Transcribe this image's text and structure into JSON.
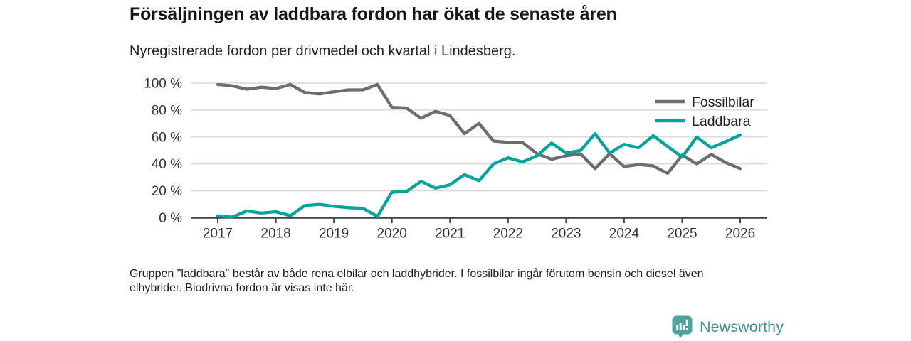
{
  "header": {
    "title": "Försäljningen av laddbara fordon har ökat de senaste åren",
    "subtitle": "Nyregistrerade fordon per drivmedel och kvartal i Lindesberg."
  },
  "chart_data": {
    "type": "line",
    "title": "Försäljningen av laddbara fordon har ökat de senaste åren",
    "subtitle": "Nyregistrerade fordon per drivmedel och kvartal i Lindesberg.",
    "x_unit": "quarter",
    "x_start": "2017 Q1",
    "x_end": "2026 Q1",
    "x_tick_labels": [
      "2017",
      "2018",
      "2019",
      "2020",
      "2021",
      "2022",
      "2023",
      "2024",
      "2025",
      "2026"
    ],
    "quarters_per_year": 4,
    "ylim": [
      0,
      100
    ],
    "y_ticks": [
      100,
      80,
      60,
      40,
      20,
      0
    ],
    "y_tick_labels": [
      "100 %",
      "80 %",
      "60 %",
      "40 %",
      "20 %",
      "0 %"
    ],
    "grid": "horizontal",
    "legend_position": "top-right",
    "series": [
      {
        "name": "Fossilbilar",
        "color": "#6c6c75",
        "values": [
          99,
          98,
          95.5,
          97,
          96,
          99,
          93,
          92,
          93.5,
          95,
          95,
          99,
          82,
          81.5,
          74,
          79,
          76,
          62.5,
          70,
          57,
          56,
          56,
          47.5,
          43.5,
          46,
          47.5,
          36.5,
          47.5,
          38,
          39.5,
          38.5,
          33,
          46.5,
          40,
          47,
          41,
          36.5
        ]
      },
      {
        "name": "Laddbara",
        "color": "#00a49b",
        "values": [
          1.5,
          0.5,
          5,
          3.5,
          4.5,
          1.5,
          9,
          10,
          8.5,
          7.5,
          7,
          1,
          19,
          19.5,
          27,
          22,
          24.5,
          32,
          27.5,
          40,
          44.5,
          41.5,
          46,
          55.5,
          48,
          50,
          62.5,
          48,
          54.5,
          52,
          61,
          53,
          45,
          60,
          52,
          56.5,
          61.5
        ]
      }
    ],
    "colors": {
      "gridline": "#dcdcdc",
      "axis": "#3f3f44",
      "axis_text": "#333333"
    }
  },
  "footnote": {
    "line1": "Gruppen \"laddbara\" består av både rena elbilar och laddhybrider. I fossilbilar ingår förutom bensin och diesel även",
    "line2": "elhybrider. Biodrivna fordon är visas inte här."
  },
  "branding": {
    "name": "Newsworthy",
    "icon": "bar-chart-speech-bubble-icon",
    "text_color": "#3d938d",
    "icon_color": "#4aa59d"
  }
}
